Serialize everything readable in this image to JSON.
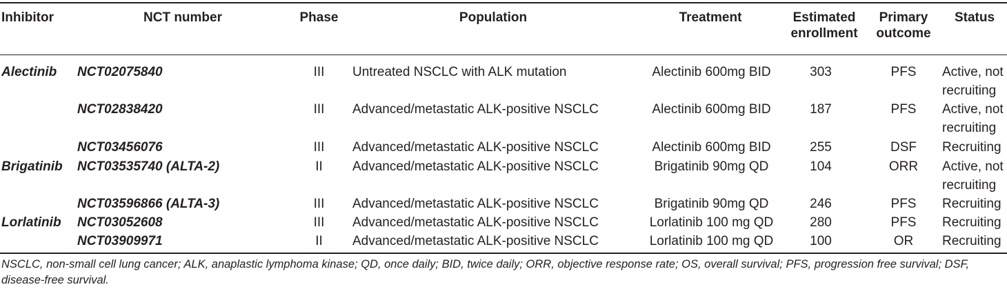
{
  "table": {
    "headers": {
      "inhibitor": "Inhibitor",
      "nct": "NCT number",
      "phase": "Phase",
      "population": "Population",
      "treatment": "Treatment",
      "enrollment_l1": "Estimated",
      "enrollment_l2": "enrollment",
      "outcome_l1": "Primary",
      "outcome_l2": "outcome",
      "status": "Status"
    },
    "rows": [
      {
        "inhibitor": "Alectinib",
        "nct": "NCT02075840",
        "phase": "III",
        "population": "Untreated NSCLC with ALK mutation",
        "treatment": "Alectinib 600mg BID",
        "enrollment": "303",
        "outcome": "PFS",
        "status_l1": "Active, not",
        "status_l2": "recruiting"
      },
      {
        "inhibitor": "",
        "nct": "NCT02838420",
        "phase": "III",
        "population": "Advanced/metastatic ALK-positive NSCLC",
        "treatment": "Alectinib 600mg BID",
        "enrollment": "187",
        "outcome": "PFS",
        "status_l1": "Active, not",
        "status_l2": "recruiting"
      },
      {
        "inhibitor": "",
        "nct": "NCT03456076",
        "phase": "III",
        "population": "Advanced/metastatic ALK-positive NSCLC",
        "treatment": "Alectinib 600mg BID",
        "enrollment": "255",
        "outcome": "DSF",
        "status_l1": "Recruiting",
        "status_l2": ""
      },
      {
        "inhibitor": "Brigatinib",
        "nct": "NCT03535740 (ALTA-2)",
        "phase": "II",
        "population": "Advanced/metastatic ALK-positive NSCLC",
        "treatment": "Brigatinib 90mg QD",
        "enrollment": "104",
        "outcome": "ORR",
        "status_l1": "Active, not",
        "status_l2": "recruiting"
      },
      {
        "inhibitor": "",
        "nct": "NCT03596866 (ALTA-3)",
        "phase": "III",
        "population": "Advanced/metastatic ALK-positive NSCLC",
        "treatment": "Brigatinib 90mg QD",
        "enrollment": "246",
        "outcome": "PFS",
        "status_l1": "Recruiting",
        "status_l2": ""
      },
      {
        "inhibitor": "Lorlatinib",
        "nct": "NCT03052608",
        "phase": "III",
        "population": "Advanced/metastatic ALK-positive NSCLC",
        "treatment": "Lorlatinib 100 mg QD",
        "enrollment": "280",
        "outcome": "PFS",
        "status_l1": "Recruiting",
        "status_l2": ""
      },
      {
        "inhibitor": "",
        "nct": "NCT03909971",
        "phase": "II",
        "population": "Advanced/metastatic ALK-positive NSCLC",
        "treatment": "Lorlatinib 100 mg QD",
        "enrollment": "100",
        "outcome": "OR",
        "status_l1": "Recruiting",
        "status_l2": ""
      }
    ]
  },
  "footnote": "NSCLC, non-small cell lung cancer; ALK, anaplastic lymphoma kinase; QD, once daily; BID, twice daily; ORR, objective response rate; OS, overall survival; PFS, progression free survival; DSF, disease-free survival."
}
